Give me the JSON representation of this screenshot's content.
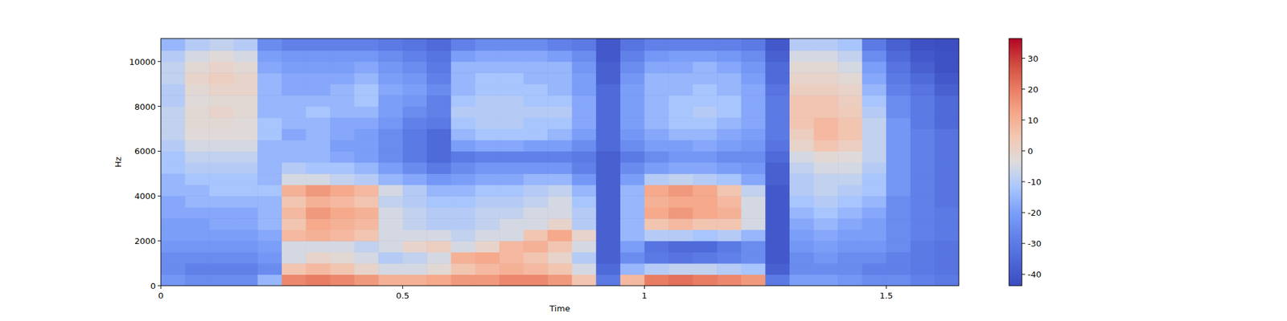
{
  "chart_data": {
    "type": "heatmap",
    "x_label": "Time",
    "y_label": "Hz",
    "xlim": [
      0,
      1.65
    ],
    "xticks": [
      0,
      0.5,
      1,
      1.5
    ],
    "ylim": [
      0,
      11025
    ],
    "yticks": [
      0,
      2000,
      4000,
      6000,
      8000,
      10000
    ],
    "x_edges": [
      0,
      0.05,
      0.1,
      0.15,
      0.2,
      0.25,
      0.3,
      0.35,
      0.4,
      0.45,
      0.5,
      0.55,
      0.6,
      0.65,
      0.7,
      0.75,
      0.8,
      0.85,
      0.9,
      0.95,
      1.0,
      1.05,
      1.1,
      1.15,
      1.2,
      1.25,
      1.3,
      1.35,
      1.4,
      1.45,
      1.5,
      1.55,
      1.6,
      1.65
    ],
    "y_edges": [
      0,
      500,
      1000,
      1500,
      2000,
      2500,
      3000,
      3500,
      4000,
      4500,
      5000,
      5500,
      6000,
      6500,
      7000,
      7500,
      8000,
      8500,
      9000,
      9500,
      10000,
      10500,
      11025
    ],
    "z": [
      [
        -22,
        -25,
        -25,
        -22,
        -20,
        -20,
        -18,
        -18,
        -15,
        -15,
        -12,
        -12,
        -10,
        -8,
        -8,
        -8,
        -10,
        -10,
        -8,
        -8,
        -10,
        -15
      ],
      [
        -25,
        -28,
        -25,
        -22,
        -20,
        -20,
        -18,
        -15,
        -15,
        -12,
        -10,
        -8,
        -5,
        -3,
        -2,
        -2,
        -3,
        -2,
        0,
        -2,
        -5,
        -10
      ],
      [
        -25,
        -28,
        -25,
        -22,
        -20,
        -18,
        -18,
        -15,
        -12,
        -12,
        -10,
        -8,
        -5,
        -3,
        -2,
        0,
        -2,
        0,
        2,
        0,
        -3,
        -8
      ],
      [
        -25,
        -28,
        -25,
        -22,
        -20,
        -18,
        -18,
        -15,
        -12,
        -12,
        -10,
        -8,
        -5,
        -3,
        -3,
        -2,
        -2,
        0,
        0,
        -2,
        -5,
        -10
      ],
      [
        -15,
        -25,
        -22,
        -20,
        -18,
        -15,
        -15,
        -15,
        -12,
        -15,
        -15,
        -15,
        -15,
        -12,
        -12,
        -15,
        -15,
        -15,
        -15,
        -18,
        -20,
        -25
      ],
      [
        18,
        5,
        -5,
        -5,
        8,
        5,
        8,
        5,
        10,
        -5,
        -10,
        -15,
        -15,
        -18,
        -15,
        -15,
        -15,
        -18,
        -18,
        -20,
        -22,
        -28
      ],
      [
        20,
        8,
        0,
        -5,
        10,
        12,
        15,
        10,
        15,
        -5,
        -12,
        -15,
        -15,
        -15,
        -15,
        -12,
        -15,
        -18,
        -18,
        -20,
        -22,
        -28
      ],
      [
        18,
        5,
        -2,
        -5,
        8,
        10,
        12,
        8,
        12,
        -8,
        -12,
        -18,
        -20,
        -18,
        -18,
        -15,
        -15,
        -15,
        -18,
        -20,
        -22,
        -28
      ],
      [
        15,
        0,
        -5,
        -8,
        5,
        8,
        10,
        5,
        8,
        -10,
        -15,
        -20,
        -20,
        -20,
        -18,
        -15,
        -12,
        -12,
        -15,
        -18,
        -22,
        -28
      ],
      [
        10,
        -5,
        -10,
        -5,
        -5,
        -5,
        -5,
        -8,
        -5,
        -15,
        -20,
        -25,
        -25,
        -25,
        -22,
        -20,
        -20,
        -18,
        -20,
        -22,
        -25,
        -30
      ],
      [
        10,
        -5,
        -8,
        0,
        -5,
        -8,
        -8,
        -10,
        -10,
        -18,
        -25,
        -30,
        -30,
        -30,
        -28,
        -25,
        -22,
        -20,
        -22,
        -25,
        -28,
        -32
      ],
      [
        12,
        -2,
        -5,
        2,
        -5,
        -10,
        -10,
        -12,
        -15,
        -22,
        -30,
        -35,
        -35,
        -35,
        -30,
        -28,
        -28,
        -25,
        -28,
        -30,
        -32,
        -35
      ],
      [
        15,
        5,
        10,
        -5,
        -8,
        -10,
        -10,
        -12,
        -15,
        -20,
        -25,
        -30,
        -20,
        -15,
        -12,
        -10,
        -12,
        -15,
        -15,
        -15,
        -20,
        -28
      ],
      [
        15,
        8,
        12,
        0,
        -5,
        -8,
        -8,
        -10,
        -12,
        -18,
        -22,
        -28,
        -18,
        -12,
        -10,
        -10,
        -10,
        -12,
        -12,
        -15,
        -18,
        -25
      ],
      [
        18,
        10,
        8,
        8,
        -5,
        -5,
        -8,
        -10,
        -12,
        -18,
        -22,
        -28,
        -18,
        -12,
        -10,
        -10,
        -10,
        -12,
        -12,
        -15,
        -18,
        -25
      ],
      [
        18,
        8,
        5,
        10,
        5,
        -5,
        -5,
        -8,
        -10,
        -15,
        -22,
        -28,
        -20,
        -12,
        -12,
        -10,
        -12,
        -12,
        -15,
        -15,
        -18,
        -25
      ],
      [
        15,
        5,
        0,
        5,
        12,
        0,
        -5,
        -5,
        -8,
        -15,
        -22,
        -28,
        -20,
        -15,
        -12,
        -10,
        -12,
        -15,
        -15,
        -15,
        -20,
        -28
      ],
      [
        5,
        -5,
        -10,
        -5,
        0,
        -10,
        -10,
        -12,
        -15,
        -22,
        -28,
        -30,
        -25,
        -20,
        -18,
        -18,
        -18,
        -20,
        -20,
        -22,
        -25,
        -30
      ],
      [
        -30,
        -35,
        -38,
        -38,
        -38,
        -38,
        -38,
        -38,
        -38,
        -38,
        -38,
        -38,
        -35,
        -35,
        -35,
        -35,
        -35,
        -35,
        -38,
        -38,
        -40,
        -40
      ],
      [
        8,
        -15,
        -25,
        -20,
        -15,
        -15,
        -15,
        -15,
        -15,
        -20,
        -25,
        -30,
        -25,
        -22,
        -20,
        -20,
        -20,
        -20,
        -22,
        -25,
        -28,
        -32
      ],
      [
        20,
        -10,
        -30,
        -32,
        -10,
        5,
        12,
        10,
        12,
        -10,
        -20,
        -25,
        -20,
        -18,
        -15,
        -15,
        -15,
        -15,
        -15,
        -18,
        -22,
        -28
      ],
      [
        22,
        -8,
        -32,
        -35,
        -10,
        8,
        15,
        12,
        15,
        -8,
        -18,
        -22,
        -20,
        -15,
        -12,
        -12,
        -12,
        -15,
        -15,
        -18,
        -20,
        -28
      ],
      [
        20,
        -8,
        -30,
        -35,
        -12,
        5,
        12,
        12,
        12,
        -10,
        -18,
        -22,
        -18,
        -15,
        -12,
        -10,
        -12,
        -12,
        -15,
        -15,
        -20,
        -28
      ],
      [
        18,
        -10,
        -28,
        -30,
        -10,
        5,
        10,
        8,
        5,
        -12,
        -20,
        -25,
        -20,
        -18,
        -15,
        -12,
        -12,
        -15,
        -15,
        -18,
        -22,
        -28
      ],
      [
        15,
        -12,
        -25,
        -25,
        -15,
        -5,
        -5,
        -5,
        -8,
        -18,
        -22,
        -25,
        -22,
        -20,
        -18,
        -18,
        -18,
        -18,
        -20,
        -22,
        -25,
        -30
      ],
      [
        -30,
        -38,
        -40,
        -40,
        -40,
        -40,
        -40,
        -40,
        -40,
        -38,
        -38,
        -35,
        -32,
        -30,
        -30,
        -30,
        -30,
        -32,
        -35,
        -35,
        -38,
        -40
      ],
      [
        -20,
        -25,
        -25,
        -22,
        -20,
        -18,
        -15,
        -12,
        -10,
        -10,
        -8,
        -5,
        0,
        2,
        5,
        5,
        5,
        2,
        0,
        -2,
        -5,
        -10
      ],
      [
        -20,
        -25,
        -22,
        -20,
        -18,
        -15,
        -12,
        -10,
        -8,
        -8,
        -5,
        -2,
        5,
        8,
        8,
        5,
        5,
        2,
        0,
        -2,
        -5,
        -10
      ],
      [
        -22,
        -25,
        -25,
        -22,
        -20,
        -18,
        -15,
        -12,
        -10,
        -8,
        -5,
        -3,
        2,
        5,
        5,
        3,
        2,
        0,
        -2,
        -5,
        -8,
        -12
      ],
      [
        -25,
        -28,
        -25,
        -22,
        -20,
        -20,
        -18,
        -15,
        -12,
        -12,
        -10,
        -8,
        -8,
        -8,
        -8,
        -10,
        -12,
        -15,
        -18,
        -20,
        -25,
        -30
      ],
      [
        -25,
        -28,
        -28,
        -25,
        -25,
        -25,
        -25,
        -25,
        -22,
        -22,
        -22,
        -22,
        -22,
        -22,
        -22,
        -25,
        -25,
        -28,
        -30,
        -32,
        -35,
        -38
      ],
      [
        -28,
        -30,
        -30,
        -30,
        -28,
        -28,
        -28,
        -28,
        -28,
        -28,
        -28,
        -28,
        -28,
        -28,
        -30,
        -30,
        -30,
        -32,
        -35,
        -38,
        -40,
        -42
      ],
      [
        -30,
        -32,
        -32,
        -32,
        -30,
        -30,
        -30,
        -32,
        -32,
        -32,
        -32,
        -32,
        -32,
        -32,
        -35,
        -35,
        -35,
        -38,
        -40,
        -42,
        -42,
        -43
      ]
    ],
    "colorbar": {
      "range": [
        -43.7,
        36.4
      ],
      "ticks": [
        -40,
        -30,
        -20,
        -10,
        0,
        10,
        20,
        30
      ]
    }
  }
}
